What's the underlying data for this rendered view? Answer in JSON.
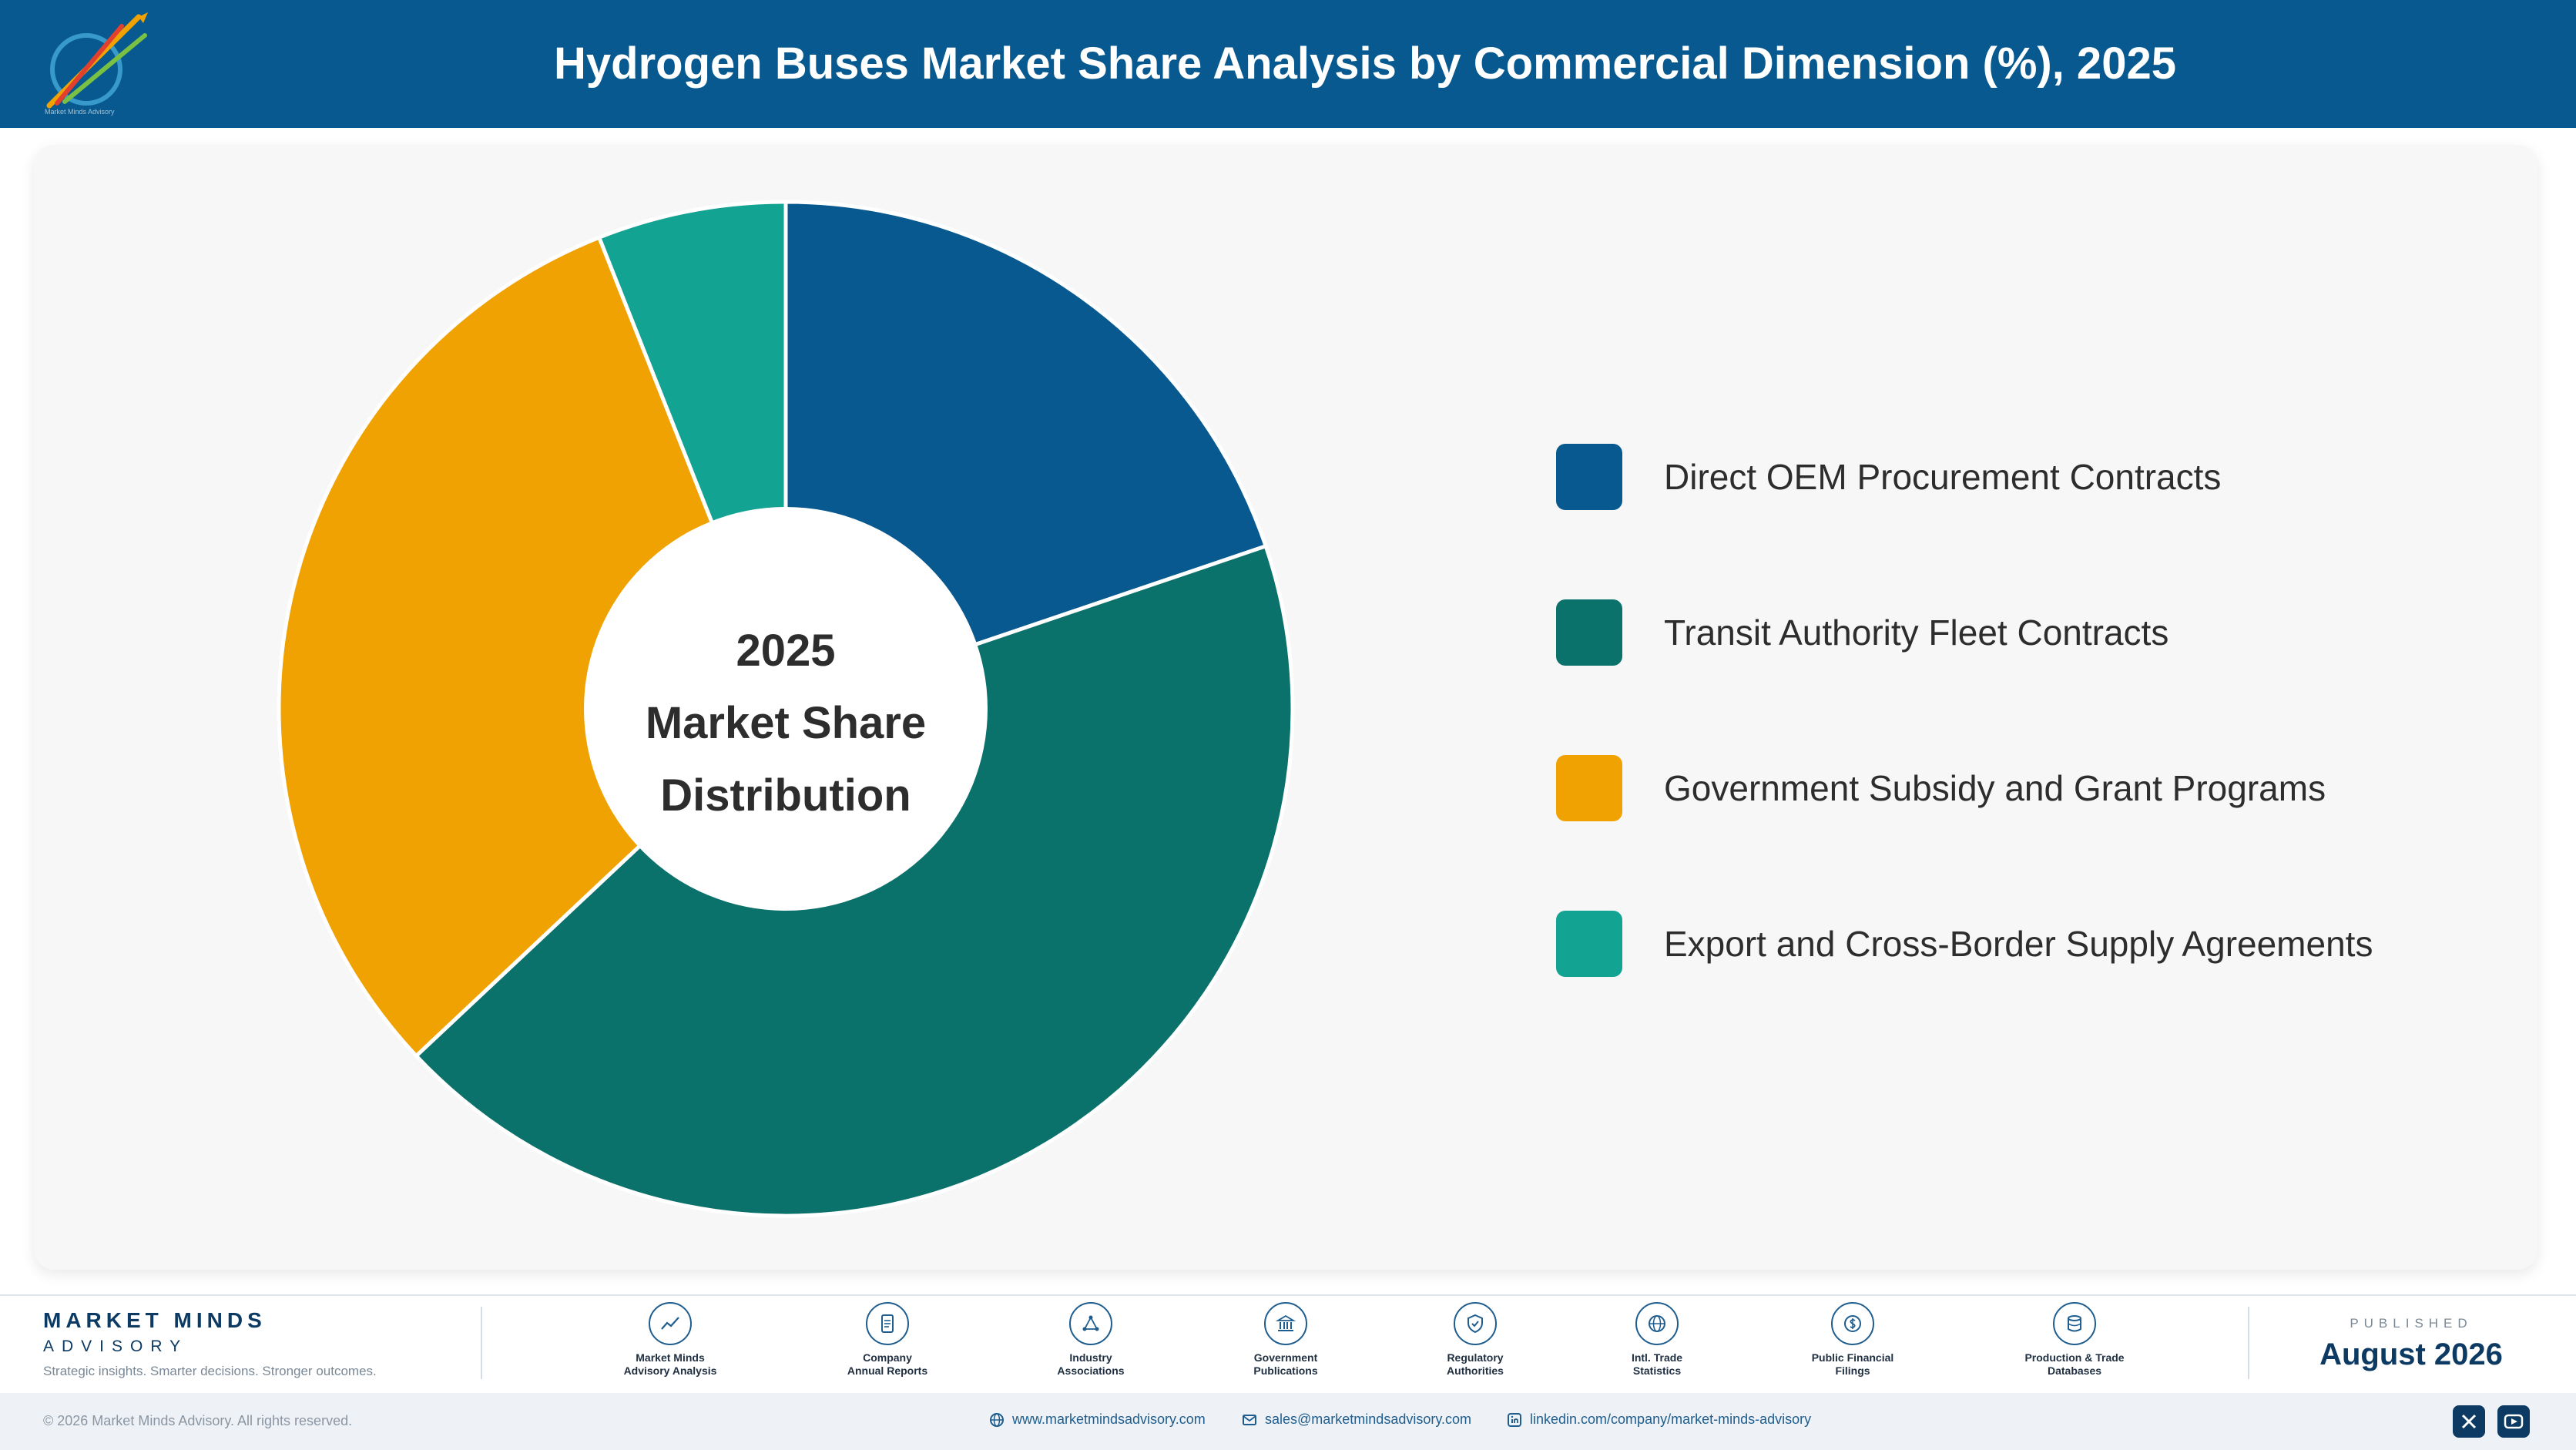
{
  "header": {
    "title": "Hydrogen Buses Market Share Analysis by Commercial Dimension (%), 2025",
    "logo_text": "Market Minds Advisory"
  },
  "chart_data": {
    "type": "pie",
    "title": "Hydrogen Buses Market Share Analysis by Commercial Dimension (%), 2025",
    "center_label": [
      "2025",
      "Market Share",
      "Distribution"
    ],
    "legend_position": "right",
    "categories": [
      "Direct OEM Procurement Contracts",
      "Transit Authority Fleet Contracts",
      "Government Subsidy and Grant Programs",
      "Export and Cross-Border Supply Agreements"
    ],
    "values": [
      19.8,
      43.2,
      31.0,
      6.0
    ],
    "colors": [
      "#07598f",
      "#0b716b",
      "#f0a202",
      "#12a393"
    ]
  },
  "footer": {
    "brand_name": "MARKET MINDS",
    "brand_sub": "ADVISORY",
    "tagline": "Strategic insights. Smarter decisions. Stronger outcomes.",
    "sources": [
      {
        "icon": "trend-chart-icon",
        "line1": "Market Minds",
        "line2": "Advisory Analysis"
      },
      {
        "icon": "document-icon",
        "line1": "Company",
        "line2": "Annual Reports"
      },
      {
        "icon": "network-icon",
        "line1": "Industry",
        "line2": "Associations"
      },
      {
        "icon": "government-building-icon",
        "line1": "Government",
        "line2": "Publications"
      },
      {
        "icon": "shield-check-icon",
        "line1": "Regulatory",
        "line2": "Authorities"
      },
      {
        "icon": "globe-icon",
        "line1": "Intl. Trade",
        "line2": "Statistics"
      },
      {
        "icon": "currency-icon",
        "line1": "Public Financial",
        "line2": "Filings"
      },
      {
        "icon": "database-icon",
        "line1": "Production & Trade",
        "line2": "Databases"
      }
    ],
    "published_label": "PUBLISHED",
    "published_date": "August 2026",
    "copyright": "© 2026 Market Minds Advisory. All rights reserved.",
    "website": "www.marketmindsadvisory.com",
    "email": "sales@marketmindsadvisory.com",
    "linkedin": "linkedin.com/company/market-minds-advisory",
    "social": [
      "x-icon",
      "youtube-icon"
    ]
  }
}
